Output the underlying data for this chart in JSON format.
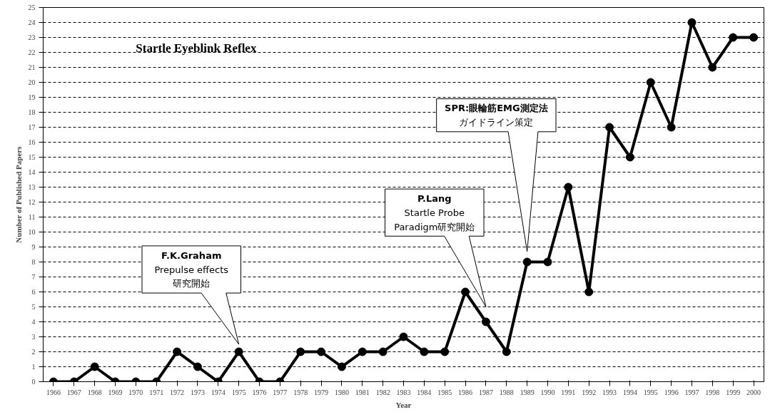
{
  "chart_data": {
    "type": "line",
    "title": "Startle Eyeblink Reflex",
    "xlabel": "Year",
    "ylabel": "Number of Published Papers",
    "categories": [
      "1966",
      "1967",
      "1968",
      "1969",
      "1970",
      "1971",
      "1972",
      "1973",
      "1974",
      "1975",
      "1976",
      "1977",
      "1978",
      "1979",
      "1980",
      "1981",
      "1982",
      "1983",
      "1984",
      "1985",
      "1986",
      "1987",
      "1988",
      "1989",
      "1990",
      "1991",
      "1992",
      "1993",
      "1994",
      "1995",
      "1996",
      "1997",
      "1998",
      "1999",
      "2000"
    ],
    "series": [
      {
        "color": "#000000",
        "values": [
          0,
          0,
          1,
          0,
          0,
          0,
          2,
          1,
          0,
          2,
          0,
          0,
          2,
          2,
          1,
          2,
          2,
          3,
          2,
          2,
          6,
          4,
          2,
          8,
          8,
          13,
          6,
          17,
          15,
          20,
          17,
          24,
          21,
          23,
          23
        ]
      }
    ],
    "ylim": [
      0,
      25
    ],
    "yticks": [
      0,
      1,
      2,
      3,
      4,
      5,
      6,
      7,
      8,
      9,
      10,
      11,
      12,
      13,
      14,
      15,
      16,
      17,
      18,
      19,
      20,
      21,
      22,
      23,
      24,
      25
    ],
    "grid": "y",
    "marker": "circle",
    "line_style": "solid",
    "annotations": [
      "F.K.Graham\nPrepulse effects\n研究開始",
      "P.Lang\nStartle Probe\nParadigm研究開始",
      "SPR:眼輪筋EMG測定法ガイドライン策定"
    ]
  }
}
